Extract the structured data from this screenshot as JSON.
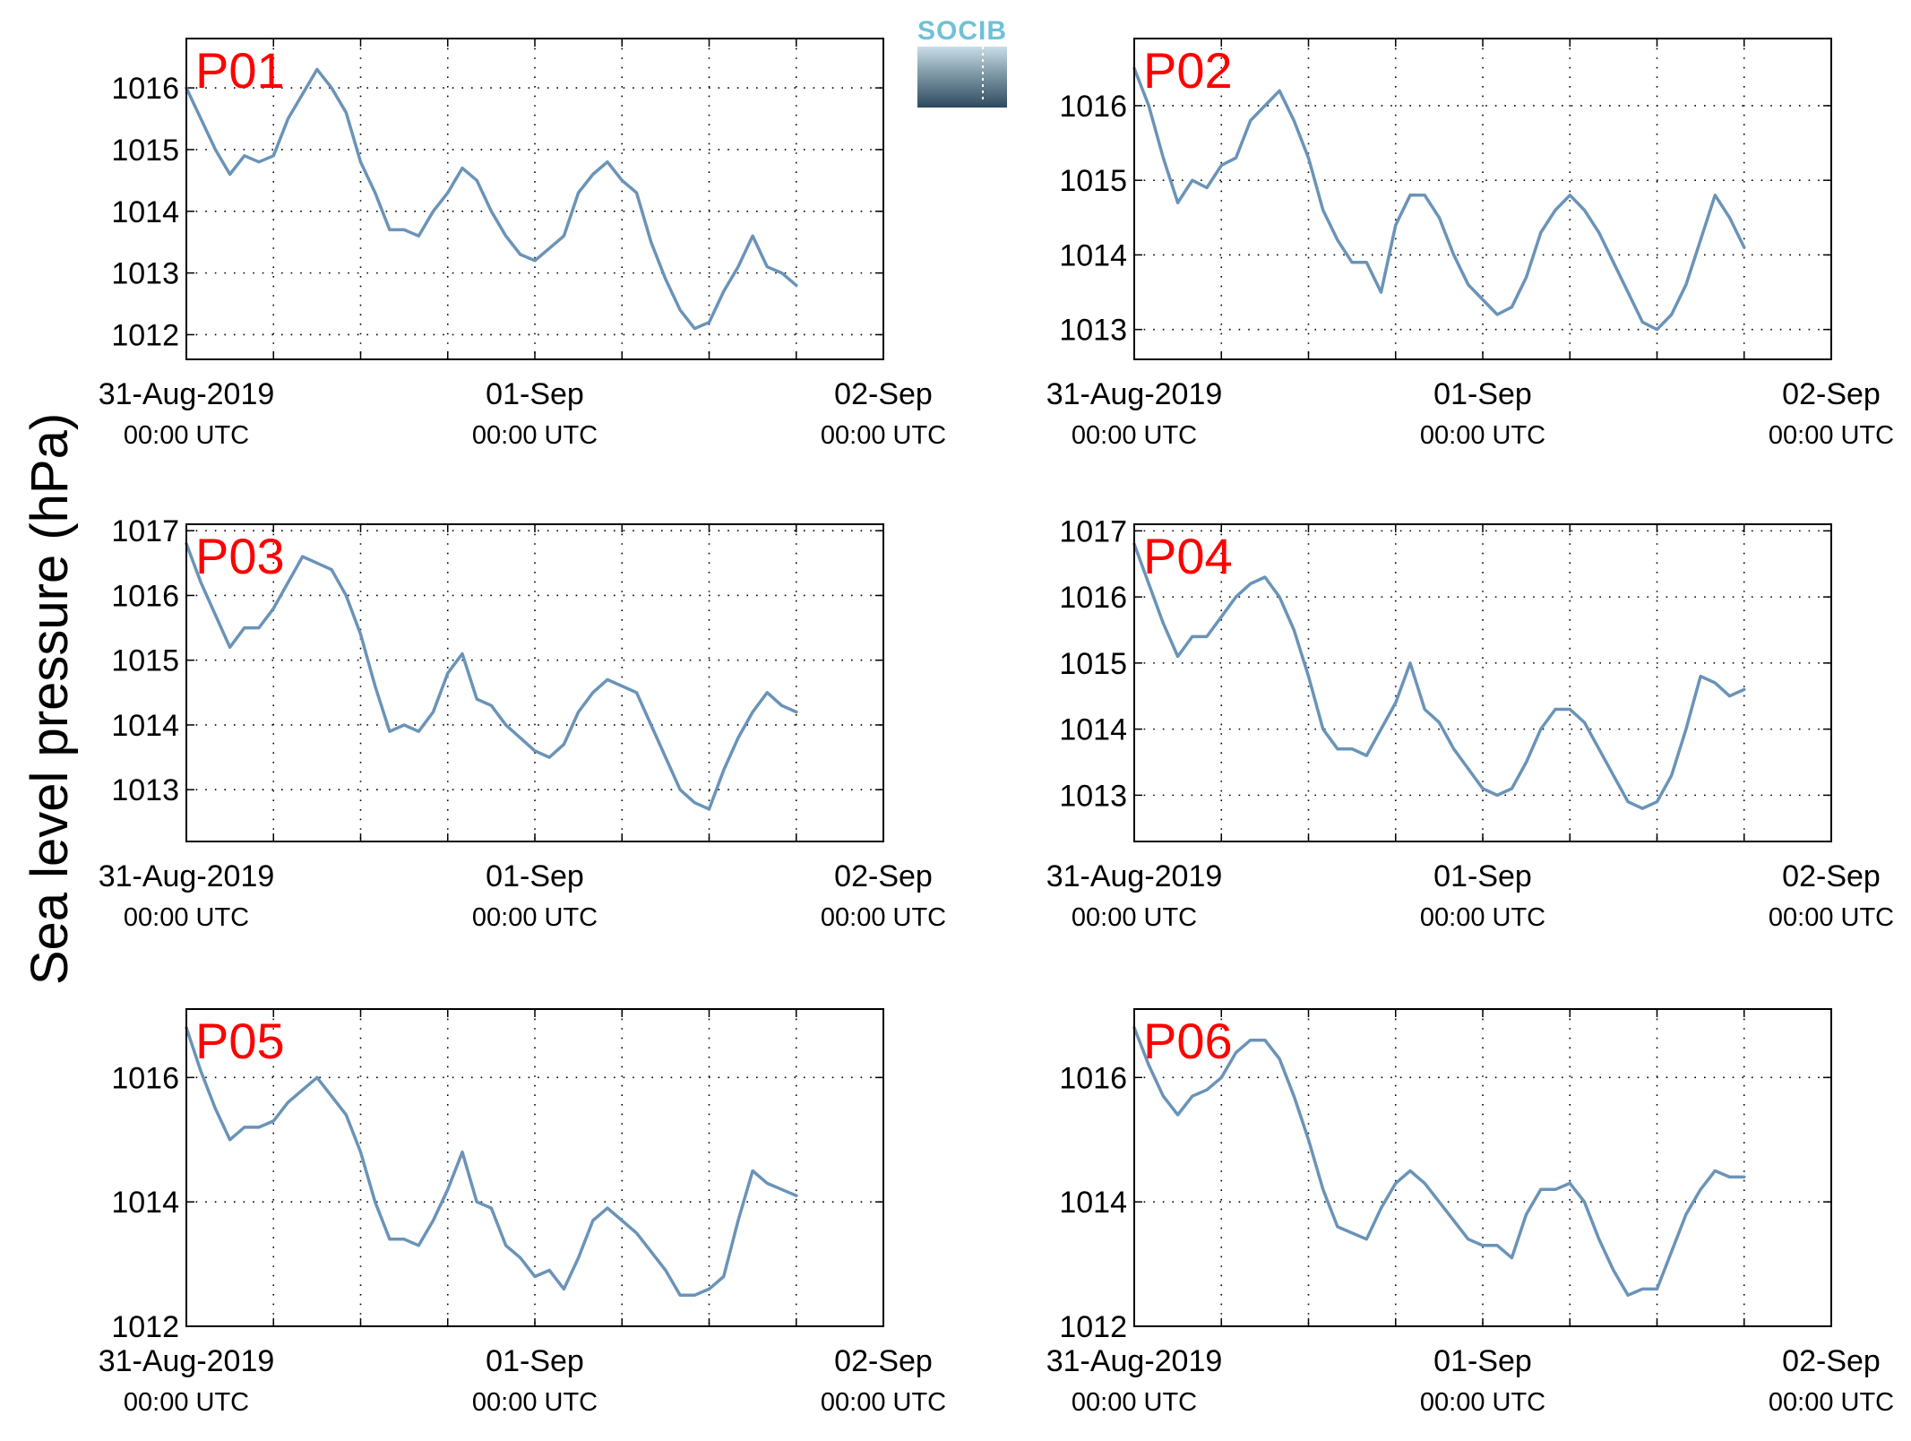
{
  "figure": {
    "ylabel": "Sea level pressure (hPa)",
    "logo_text": "SOCIB",
    "colors": {
      "series": "#6a93b8",
      "panel_label": "#ff0000",
      "logo_top": "#6fc1d6",
      "logo_bottom": "#2d4a5e"
    }
  },
  "chart_data": [
    {
      "type": "line",
      "panel": "P01",
      "xlim": [
        0,
        48
      ],
      "ylim": [
        1011.6,
        1016.8
      ],
      "yticks": [
        1012,
        1013,
        1014,
        1015,
        1016
      ],
      "grid": true,
      "x_ticks": [
        {
          "x": 0,
          "date": "31-Aug-2019",
          "time": "00:00 UTC"
        },
        {
          "x": 24,
          "date": "01-Sep",
          "time": "00:00 UTC"
        },
        {
          "x": 48,
          "date": "02-Sep",
          "time": "00:00 UTC"
        }
      ],
      "x_hours": [
        0,
        1,
        2,
        3,
        4,
        5,
        6,
        7,
        8,
        9,
        10,
        11,
        12,
        13,
        14,
        15,
        16,
        17,
        18,
        19,
        20,
        21,
        22,
        23,
        24,
        25,
        26,
        27,
        28,
        29,
        30,
        31,
        32,
        33,
        34,
        35,
        36,
        37,
        38,
        39,
        40,
        41,
        42,
        43,
        44,
        45,
        46,
        47,
        48
      ],
      "values": [
        1016.0,
        1015.5,
        1015.0,
        1014.6,
        1014.9,
        1014.8,
        1014.9,
        1015.5,
        1015.9,
        1016.3,
        1016.0,
        1015.6,
        1014.8,
        1014.3,
        1013.7,
        1013.7,
        1013.6,
        1014.0,
        1014.3,
        1014.7,
        1014.5,
        1014.0,
        1013.6,
        1013.3,
        1013.2,
        1013.4,
        1013.6,
        1014.3,
        1014.6,
        1014.8,
        1014.5,
        1014.3,
        1013.5,
        1012.9,
        1012.4,
        1012.1,
        1012.2,
        1012.7,
        1013.1,
        1013.6,
        1013.1,
        1013.0,
        1012.8,
        null,
        null,
        null,
        null,
        null,
        null
      ]
    },
    {
      "type": "line",
      "panel": "P02",
      "xlim": [
        0,
        48
      ],
      "ylim": [
        1012.6,
        1016.9
      ],
      "yticks": [
        1013,
        1014,
        1015,
        1016
      ],
      "grid": true,
      "x_ticks": [
        {
          "x": 0,
          "date": "31-Aug-2019",
          "time": "00:00 UTC"
        },
        {
          "x": 24,
          "date": "01-Sep",
          "time": "00:00 UTC"
        },
        {
          "x": 48,
          "date": "02-Sep",
          "time": "00:00 UTC"
        }
      ],
      "x_hours": [
        0,
        1,
        2,
        3,
        4,
        5,
        6,
        7,
        8,
        9,
        10,
        11,
        12,
        13,
        14,
        15,
        16,
        17,
        18,
        19,
        20,
        21,
        22,
        23,
        24,
        25,
        26,
        27,
        28,
        29,
        30,
        31,
        32,
        33,
        34,
        35,
        36,
        37,
        38,
        39,
        40,
        41,
        42,
        43,
        44,
        45,
        46,
        47,
        48
      ],
      "values": [
        1016.5,
        1016.0,
        1015.3,
        1014.7,
        1015.0,
        1014.9,
        1015.2,
        1015.3,
        1015.8,
        1016.0,
        1016.2,
        1015.8,
        1015.3,
        1014.6,
        1014.2,
        1013.9,
        1013.9,
        1013.5,
        1014.4,
        1014.8,
        1014.8,
        1014.5,
        1014.0,
        1013.6,
        1013.4,
        1013.2,
        1013.3,
        1013.7,
        1014.3,
        1014.6,
        1014.8,
        1014.6,
        1014.3,
        1013.9,
        1013.5,
        1013.1,
        1013.0,
        1013.2,
        1013.6,
        1014.2,
        1014.8,
        1014.5,
        1014.1,
        null,
        null,
        null,
        null,
        null,
        null
      ]
    },
    {
      "type": "line",
      "panel": "P03",
      "xlim": [
        0,
        48
      ],
      "ylim": [
        1012.2,
        1017.1
      ],
      "yticks": [
        1013,
        1014,
        1015,
        1016,
        1017
      ],
      "grid": true,
      "x_ticks": [
        {
          "x": 0,
          "date": "31-Aug-2019",
          "time": "00:00 UTC"
        },
        {
          "x": 24,
          "date": "01-Sep",
          "time": "00:00 UTC"
        },
        {
          "x": 48,
          "date": "02-Sep",
          "time": "00:00 UTC"
        }
      ],
      "x_hours": [
        0,
        1,
        2,
        3,
        4,
        5,
        6,
        7,
        8,
        9,
        10,
        11,
        12,
        13,
        14,
        15,
        16,
        17,
        18,
        19,
        20,
        21,
        22,
        23,
        24,
        25,
        26,
        27,
        28,
        29,
        30,
        31,
        32,
        33,
        34,
        35,
        36,
        37,
        38,
        39,
        40,
        41,
        42,
        43,
        44,
        45,
        46,
        47,
        48
      ],
      "values": [
        1016.8,
        1016.2,
        1015.7,
        1015.2,
        1015.5,
        1015.5,
        1015.8,
        1016.2,
        1016.6,
        1016.5,
        1016.4,
        1016.0,
        1015.4,
        1014.6,
        1013.9,
        1014.0,
        1013.9,
        1014.2,
        1014.8,
        1015.1,
        1014.4,
        1014.3,
        1014.0,
        1013.8,
        1013.6,
        1013.5,
        1013.7,
        1014.2,
        1014.5,
        1014.7,
        1014.6,
        1014.5,
        1014.0,
        1013.5,
        1013.0,
        1012.8,
        1012.7,
        1013.3,
        1013.8,
        1014.2,
        1014.5,
        1014.3,
        1014.2,
        null,
        null,
        null,
        null,
        null,
        null
      ]
    },
    {
      "type": "line",
      "panel": "P04",
      "xlim": [
        0,
        48
      ],
      "ylim": [
        1012.3,
        1017.1
      ],
      "yticks": [
        1013,
        1014,
        1015,
        1016,
        1017
      ],
      "grid": true,
      "x_ticks": [
        {
          "x": 0,
          "date": "31-Aug-2019",
          "time": "00:00 UTC"
        },
        {
          "x": 24,
          "date": "01-Sep",
          "time": "00:00 UTC"
        },
        {
          "x": 48,
          "date": "02-Sep",
          "time": "00:00 UTC"
        }
      ],
      "x_hours": [
        0,
        1,
        2,
        3,
        4,
        5,
        6,
        7,
        8,
        9,
        10,
        11,
        12,
        13,
        14,
        15,
        16,
        17,
        18,
        19,
        20,
        21,
        22,
        23,
        24,
        25,
        26,
        27,
        28,
        29,
        30,
        31,
        32,
        33,
        34,
        35,
        36,
        37,
        38,
        39,
        40,
        41,
        42,
        43,
        44,
        45,
        46,
        47,
        48
      ],
      "values": [
        1016.8,
        1016.2,
        1015.6,
        1015.1,
        1015.4,
        1015.4,
        1015.7,
        1016.0,
        1016.2,
        1016.3,
        1016.0,
        1015.5,
        1014.8,
        1014.0,
        1013.7,
        1013.7,
        1013.6,
        1014.0,
        1014.4,
        1015.0,
        1014.3,
        1014.1,
        1013.7,
        1013.4,
        1013.1,
        1013.0,
        1013.1,
        1013.5,
        1014.0,
        1014.3,
        1014.3,
        1014.1,
        1013.7,
        1013.3,
        1012.9,
        1012.8,
        1012.9,
        1013.3,
        1014.0,
        1014.8,
        1014.7,
        1014.5,
        1014.6,
        null,
        null,
        null,
        null,
        null,
        null
      ]
    },
    {
      "type": "line",
      "panel": "P05",
      "xlim": [
        0,
        48
      ],
      "ylim": [
        1012.0,
        1017.1
      ],
      "yticks": [
        1012,
        1014,
        1016
      ],
      "grid": true,
      "x_ticks": [
        {
          "x": 0,
          "date": "31-Aug-2019",
          "time": "00:00 UTC"
        },
        {
          "x": 24,
          "date": "01-Sep",
          "time": "00:00 UTC"
        },
        {
          "x": 48,
          "date": "02-Sep",
          "time": "00:00 UTC"
        }
      ],
      "x_hours": [
        0,
        1,
        2,
        3,
        4,
        5,
        6,
        7,
        8,
        9,
        10,
        11,
        12,
        13,
        14,
        15,
        16,
        17,
        18,
        19,
        20,
        21,
        22,
        23,
        24,
        25,
        26,
        27,
        28,
        29,
        30,
        31,
        32,
        33,
        34,
        35,
        36,
        37,
        38,
        39,
        40,
        41,
        42,
        43,
        44,
        45,
        46,
        47,
        48
      ],
      "values": [
        1016.8,
        1016.1,
        1015.5,
        1015.0,
        1015.2,
        1015.2,
        1015.3,
        1015.6,
        1015.8,
        1016.0,
        1015.7,
        1015.4,
        1014.8,
        1014.0,
        1013.4,
        1013.4,
        1013.3,
        1013.7,
        1014.2,
        1014.8,
        1014.0,
        1013.9,
        1013.3,
        1013.1,
        1012.8,
        1012.9,
        1012.6,
        1013.1,
        1013.7,
        1013.9,
        1013.7,
        1013.5,
        1013.2,
        1012.9,
        1012.5,
        1012.5,
        1012.6,
        1012.8,
        1013.7,
        1014.5,
        1014.3,
        1014.2,
        1014.1,
        null,
        null,
        null,
        null,
        null,
        null
      ]
    },
    {
      "type": "line",
      "panel": "P06",
      "xlim": [
        0,
        48
      ],
      "ylim": [
        1012.0,
        1017.1
      ],
      "yticks": [
        1012,
        1014,
        1016
      ],
      "grid": true,
      "x_ticks": [
        {
          "x": 0,
          "date": "31-Aug-2019",
          "time": "00:00 UTC"
        },
        {
          "x": 24,
          "date": "01-Sep",
          "time": "00:00 UTC"
        },
        {
          "x": 48,
          "date": "02-Sep",
          "time": "00:00 UTC"
        }
      ],
      "x_hours": [
        0,
        1,
        2,
        3,
        4,
        5,
        6,
        7,
        8,
        9,
        10,
        11,
        12,
        13,
        14,
        15,
        16,
        17,
        18,
        19,
        20,
        21,
        22,
        23,
        24,
        25,
        26,
        27,
        28,
        29,
        30,
        31,
        32,
        33,
        34,
        35,
        36,
        37,
        38,
        39,
        40,
        41,
        42,
        43,
        44,
        45,
        46,
        47,
        48
      ],
      "values": [
        1016.8,
        1016.2,
        1015.7,
        1015.4,
        1015.7,
        1015.8,
        1016.0,
        1016.4,
        1016.6,
        1016.6,
        1016.3,
        1015.7,
        1015.0,
        1014.2,
        1013.6,
        1013.5,
        1013.4,
        1013.9,
        1014.3,
        1014.5,
        1014.3,
        1014.0,
        1013.7,
        1013.4,
        1013.3,
        1013.3,
        1013.1,
        1013.8,
        1014.2,
        1014.2,
        1014.3,
        1014.0,
        1013.4,
        1012.9,
        1012.5,
        1012.6,
        1012.6,
        1013.2,
        1013.8,
        1014.2,
        1014.5,
        1014.4,
        1014.4,
        null,
        null,
        null,
        null,
        null,
        null
      ]
    }
  ]
}
